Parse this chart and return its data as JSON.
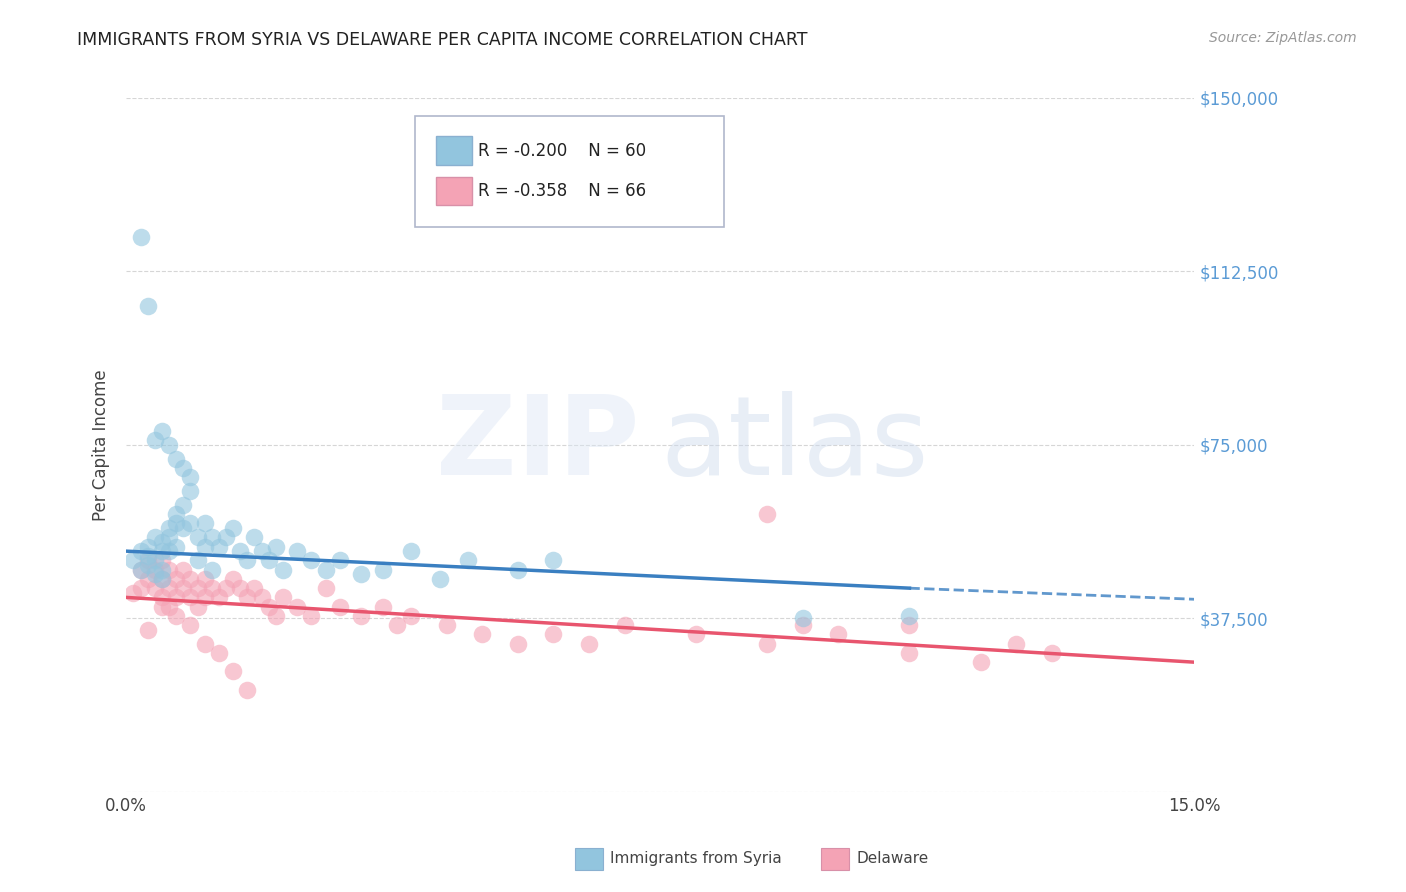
{
  "title": "IMMIGRANTS FROM SYRIA VS DELAWARE PER CAPITA INCOME CORRELATION CHART",
  "source": "Source: ZipAtlas.com",
  "ylabel": "Per Capita Income",
  "xlim": [
    0.0,
    0.15
  ],
  "ylim": [
    0,
    150000
  ],
  "yticks": [
    0,
    37500,
    75000,
    112500,
    150000
  ],
  "ytick_labels": [
    "",
    "$37,500",
    "$75,000",
    "$112,500",
    "$150,000"
  ],
  "xtick_labels": [
    "0.0%",
    "15.0%"
  ],
  "xtick_positions": [
    0.0,
    0.15
  ],
  "blue_R": -0.2,
  "blue_N": 60,
  "pink_R": -0.358,
  "pink_N": 66,
  "blue_color": "#92c5de",
  "pink_color": "#f4a3b5",
  "blue_line_color": "#3a7fc1",
  "pink_line_color": "#e8556e",
  "grid_color": "#cccccc",
  "background_color": "#ffffff",
  "blue_scatter_x": [
    0.001,
    0.002,
    0.002,
    0.003,
    0.003,
    0.003,
    0.004,
    0.004,
    0.004,
    0.005,
    0.005,
    0.005,
    0.005,
    0.006,
    0.006,
    0.006,
    0.007,
    0.007,
    0.007,
    0.008,
    0.008,
    0.009,
    0.009,
    0.01,
    0.01,
    0.011,
    0.011,
    0.012,
    0.012,
    0.013,
    0.014,
    0.015,
    0.016,
    0.017,
    0.018,
    0.019,
    0.02,
    0.021,
    0.022,
    0.024,
    0.026,
    0.028,
    0.03,
    0.033,
    0.036,
    0.04,
    0.044,
    0.048,
    0.055,
    0.06,
    0.002,
    0.003,
    0.004,
    0.005,
    0.006,
    0.007,
    0.008,
    0.009,
    0.11,
    0.095
  ],
  "blue_scatter_y": [
    50000,
    52000,
    48000,
    53000,
    51000,
    49000,
    55000,
    50000,
    47000,
    54000,
    52000,
    48000,
    46000,
    57000,
    55000,
    52000,
    60000,
    58000,
    53000,
    62000,
    57000,
    65000,
    58000,
    55000,
    50000,
    58000,
    53000,
    55000,
    48000,
    53000,
    55000,
    57000,
    52000,
    50000,
    55000,
    52000,
    50000,
    53000,
    48000,
    52000,
    50000,
    48000,
    50000,
    47000,
    48000,
    52000,
    46000,
    50000,
    48000,
    50000,
    120000,
    105000,
    76000,
    78000,
    75000,
    72000,
    70000,
    68000,
    38000,
    37500
  ],
  "pink_scatter_x": [
    0.001,
    0.002,
    0.002,
    0.003,
    0.003,
    0.004,
    0.004,
    0.005,
    0.005,
    0.005,
    0.006,
    0.006,
    0.006,
    0.007,
    0.007,
    0.008,
    0.008,
    0.009,
    0.009,
    0.01,
    0.01,
    0.011,
    0.011,
    0.012,
    0.013,
    0.014,
    0.015,
    0.016,
    0.017,
    0.018,
    0.019,
    0.02,
    0.021,
    0.022,
    0.024,
    0.026,
    0.028,
    0.03,
    0.033,
    0.036,
    0.038,
    0.04,
    0.045,
    0.05,
    0.055,
    0.06,
    0.065,
    0.07,
    0.08,
    0.09,
    0.095,
    0.1,
    0.11,
    0.12,
    0.125,
    0.13,
    0.003,
    0.005,
    0.007,
    0.009,
    0.011,
    0.013,
    0.015,
    0.017,
    0.09,
    0.11
  ],
  "pink_scatter_y": [
    43000,
    48000,
    44000,
    50000,
    46000,
    48000,
    44000,
    50000,
    46000,
    42000,
    48000,
    44000,
    40000,
    46000,
    42000,
    48000,
    44000,
    46000,
    42000,
    44000,
    40000,
    46000,
    42000,
    44000,
    42000,
    44000,
    46000,
    44000,
    42000,
    44000,
    42000,
    40000,
    38000,
    42000,
    40000,
    38000,
    44000,
    40000,
    38000,
    40000,
    36000,
    38000,
    36000,
    34000,
    32000,
    34000,
    32000,
    36000,
    34000,
    32000,
    36000,
    34000,
    30000,
    28000,
    32000,
    30000,
    35000,
    40000,
    38000,
    36000,
    32000,
    30000,
    26000,
    22000,
    60000,
    36000
  ]
}
